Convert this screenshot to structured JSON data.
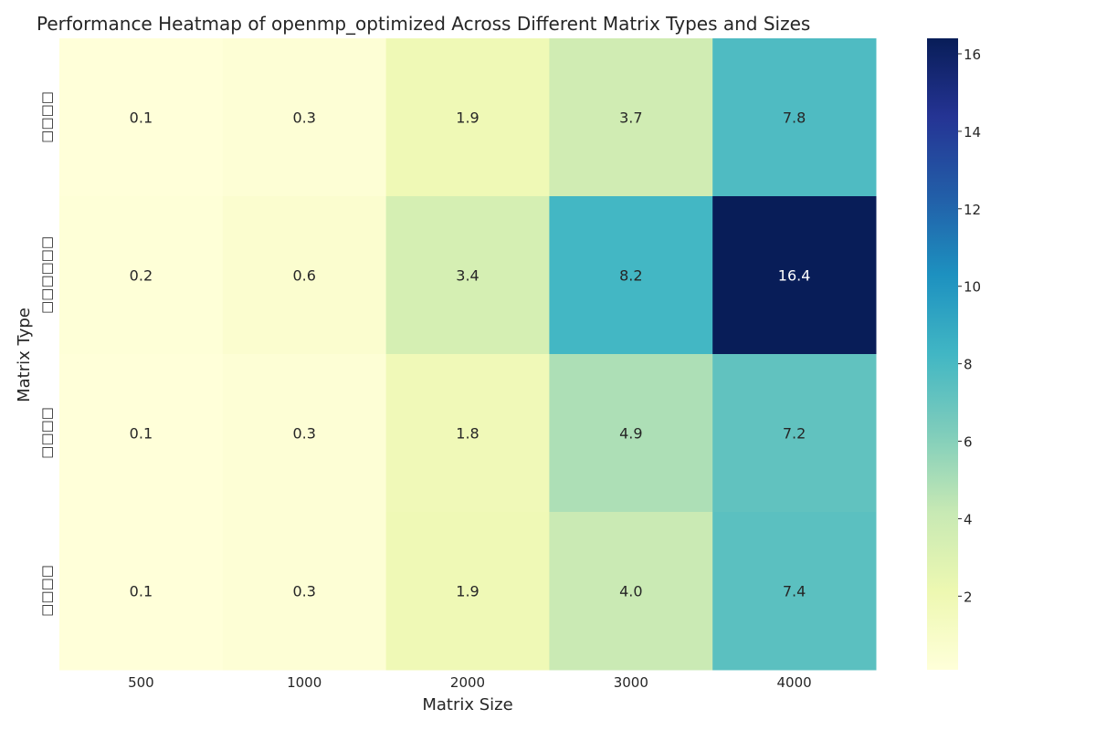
{
  "chart_data": {
    "type": "heatmap",
    "title": "Performance Heatmap of openmp_optimized Across Different Matrix Types and Sizes",
    "xlabel": "Matrix Size",
    "ylabel": "Matrix Type",
    "x_categories": [
      "500",
      "1000",
      "2000",
      "3000",
      "4000"
    ],
    "y_categories": [
      "□□□□",
      "□□□□□□",
      "□□□□",
      "□□□□"
    ],
    "values": [
      [
        0.1,
        0.3,
        1.9,
        3.7,
        7.8
      ],
      [
        0.2,
        0.6,
        3.4,
        8.2,
        16.4
      ],
      [
        0.1,
        0.3,
        1.8,
        4.9,
        7.2
      ],
      [
        0.1,
        0.3,
        1.9,
        4.0,
        7.4
      ]
    ],
    "value_labels": [
      [
        "0.1",
        "0.3",
        "1.9",
        "3.7",
        "7.8"
      ],
      [
        "0.2",
        "0.6",
        "3.4",
        "8.2",
        "16.4"
      ],
      [
        "0.1",
        "0.3",
        "1.8",
        "4.9",
        "7.2"
      ],
      [
        "0.1",
        "0.3",
        "1.9",
        "4.0",
        "7.4"
      ]
    ],
    "colormap": "YlGnBu",
    "vmin": 0.1,
    "vmax": 16.4,
    "colorbar_ticks": [
      2,
      4,
      6,
      8,
      10,
      12,
      14,
      16
    ],
    "colorbar_tick_labels": [
      "2",
      "4",
      "6",
      "8",
      "10",
      "12",
      "14",
      "16"
    ]
  }
}
